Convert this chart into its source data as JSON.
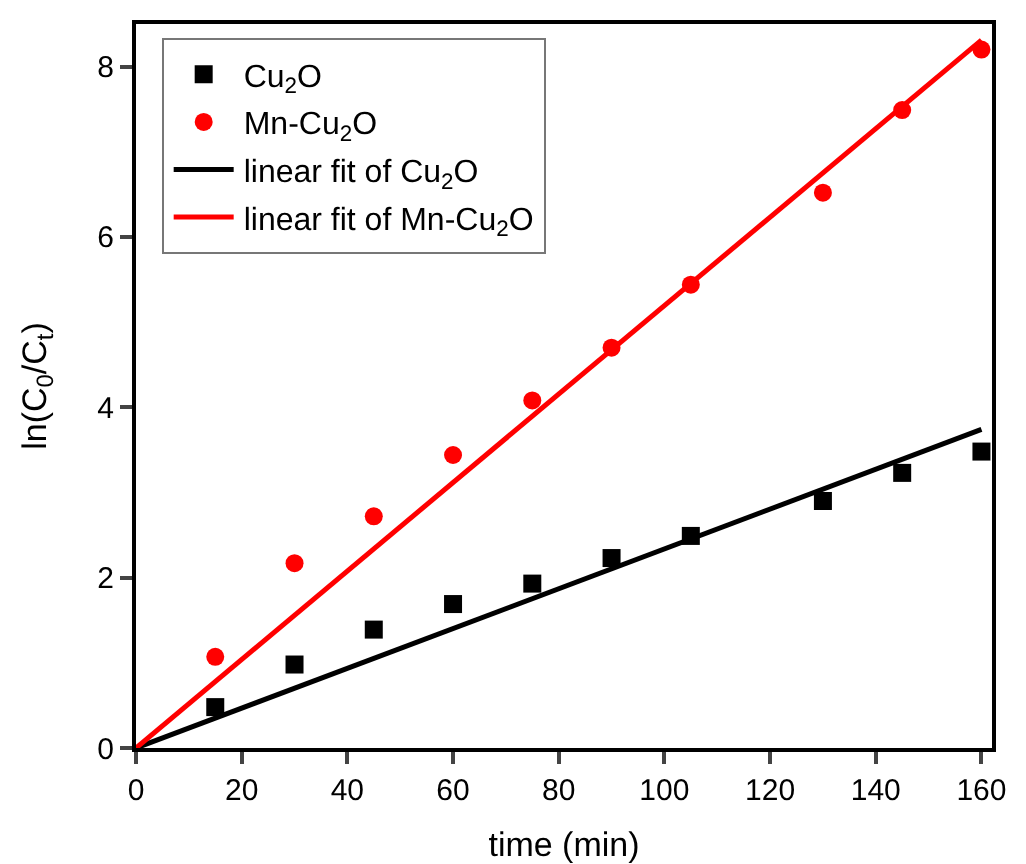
{
  "chart_data": {
    "type": "scatter",
    "xlabel": "time (min)",
    "ylabel": "ln(C$_{0}$/C$_{t}$)",
    "xlim": [
      0,
      162
    ],
    "ylim": [
      0,
      8.5
    ],
    "xticks": [
      0,
      20,
      40,
      60,
      80,
      100,
      120,
      140,
      160
    ],
    "yticks": [
      0,
      2,
      4,
      6,
      8
    ],
    "grid": false,
    "legend": "top left",
    "series": [
      {
        "name": "Cu$_{2}$O",
        "marker": "square",
        "color": "#000000",
        "x": [
          15,
          30,
          45,
          60,
          75,
          90,
          105,
          130,
          145,
          160
        ],
        "values": [
          0.48,
          0.98,
          1.39,
          1.69,
          1.93,
          2.23,
          2.49,
          2.9,
          3.23,
          3.48
        ]
      },
      {
        "name": "Mn-Cu$_{2}$O",
        "marker": "circle",
        "color": "#ff0000",
        "x": [
          15,
          30,
          45,
          60,
          75,
          90,
          105,
          130,
          145,
          160
        ],
        "values": [
          1.07,
          2.17,
          2.72,
          3.44,
          4.08,
          4.7,
          5.44,
          6.52,
          7.49,
          8.2
        ]
      },
      {
        "name": "linear fit of Cu$_{2}$O",
        "type": "line",
        "marker": "none",
        "line_style": "solid",
        "color": "#000000",
        "x": [
          0,
          160
        ],
        "values": [
          0,
          3.74
        ]
      },
      {
        "name": "linear fit of Mn-Cu$_{2}$O",
        "type": "line",
        "marker": "none",
        "line_style": "solid",
        "color": "#ff0000",
        "x": [
          0,
          160
        ],
        "values": [
          0,
          8.31
        ]
      }
    ]
  }
}
